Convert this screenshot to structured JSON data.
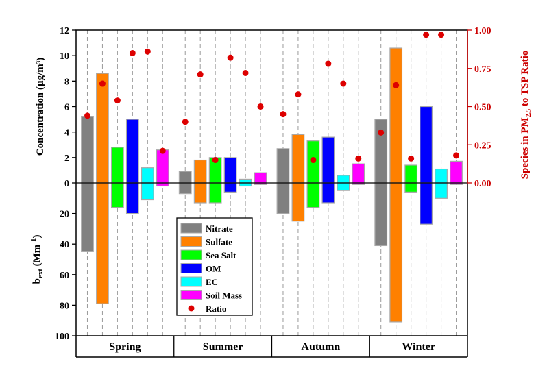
{
  "chart_data": {
    "type": "bar",
    "categories": [
      "Spring",
      "Summer",
      "Autumn",
      "Winter"
    ],
    "species": [
      "Nitrate",
      "Sulfate",
      "Sea Salt",
      "OM",
      "EC",
      "Soil Mass"
    ],
    "series": [
      {
        "name": "Nitrate",
        "color": "#808080",
        "concentration": [
          5.2,
          0.9,
          2.7,
          5.0
        ],
        "bext": [
          45,
          7,
          20,
          41
        ]
      },
      {
        "name": "Sulfate",
        "color": "#ff8000",
        "concentration": [
          8.6,
          1.8,
          3.8,
          10.6
        ],
        "bext": [
          79,
          13,
          25,
          91
        ]
      },
      {
        "name": "Sea Salt",
        "color": "#00ff00",
        "concentration": [
          2.8,
          2.0,
          3.3,
          1.4
        ],
        "bext": [
          16,
          13,
          16,
          6
        ]
      },
      {
        "name": "OM",
        "color": "#0000ff",
        "concentration": [
          5.0,
          2.0,
          3.6,
          6.0
        ],
        "bext": [
          20,
          6,
          13,
          27
        ]
      },
      {
        "name": "EC",
        "color": "#00ffff",
        "concentration": [
          1.2,
          0.3,
          0.6,
          1.1
        ],
        "bext": [
          11,
          2,
          5,
          10
        ]
      },
      {
        "name": "Soil Mass",
        "color": "#ff00ff",
        "concentration": [
          2.6,
          0.8,
          1.5,
          1.7
        ],
        "bext": [
          2,
          1,
          1,
          1
        ]
      }
    ],
    "ratio": {
      "name": "Ratio",
      "color": "#dd0000",
      "values": [
        [
          0.44,
          0.65,
          0.54,
          0.85,
          0.86,
          0.21
        ],
        [
          0.4,
          0.71,
          0.15,
          0.82,
          0.72,
          0.5
        ],
        [
          0.45,
          0.58,
          0.15,
          0.78,
          0.65,
          0.16
        ],
        [
          0.33,
          0.64,
          0.16,
          0.97,
          0.97,
          0.18
        ]
      ]
    },
    "y_top": {
      "label": "Concentration (μg/m³)",
      "ylim": [
        0,
        12
      ],
      "ticks": [
        0,
        2,
        4,
        6,
        8,
        10,
        12
      ]
    },
    "y_bottom": {
      "label": "b_ext (Mm⁻¹)",
      "ylim": [
        0,
        100
      ],
      "ticks": [
        20,
        40,
        60,
        80,
        100
      ]
    },
    "y_right": {
      "label": "Species in PM2.5 to TSP Ratio",
      "ylim": [
        0,
        1.0
      ],
      "ticks": [
        "0.00",
        "0.25",
        "0.50",
        "0.75",
        "1.00"
      ],
      "color": "#cc0000"
    },
    "legend_position": "center-bottom",
    "grid": "dashed vertical lines"
  }
}
